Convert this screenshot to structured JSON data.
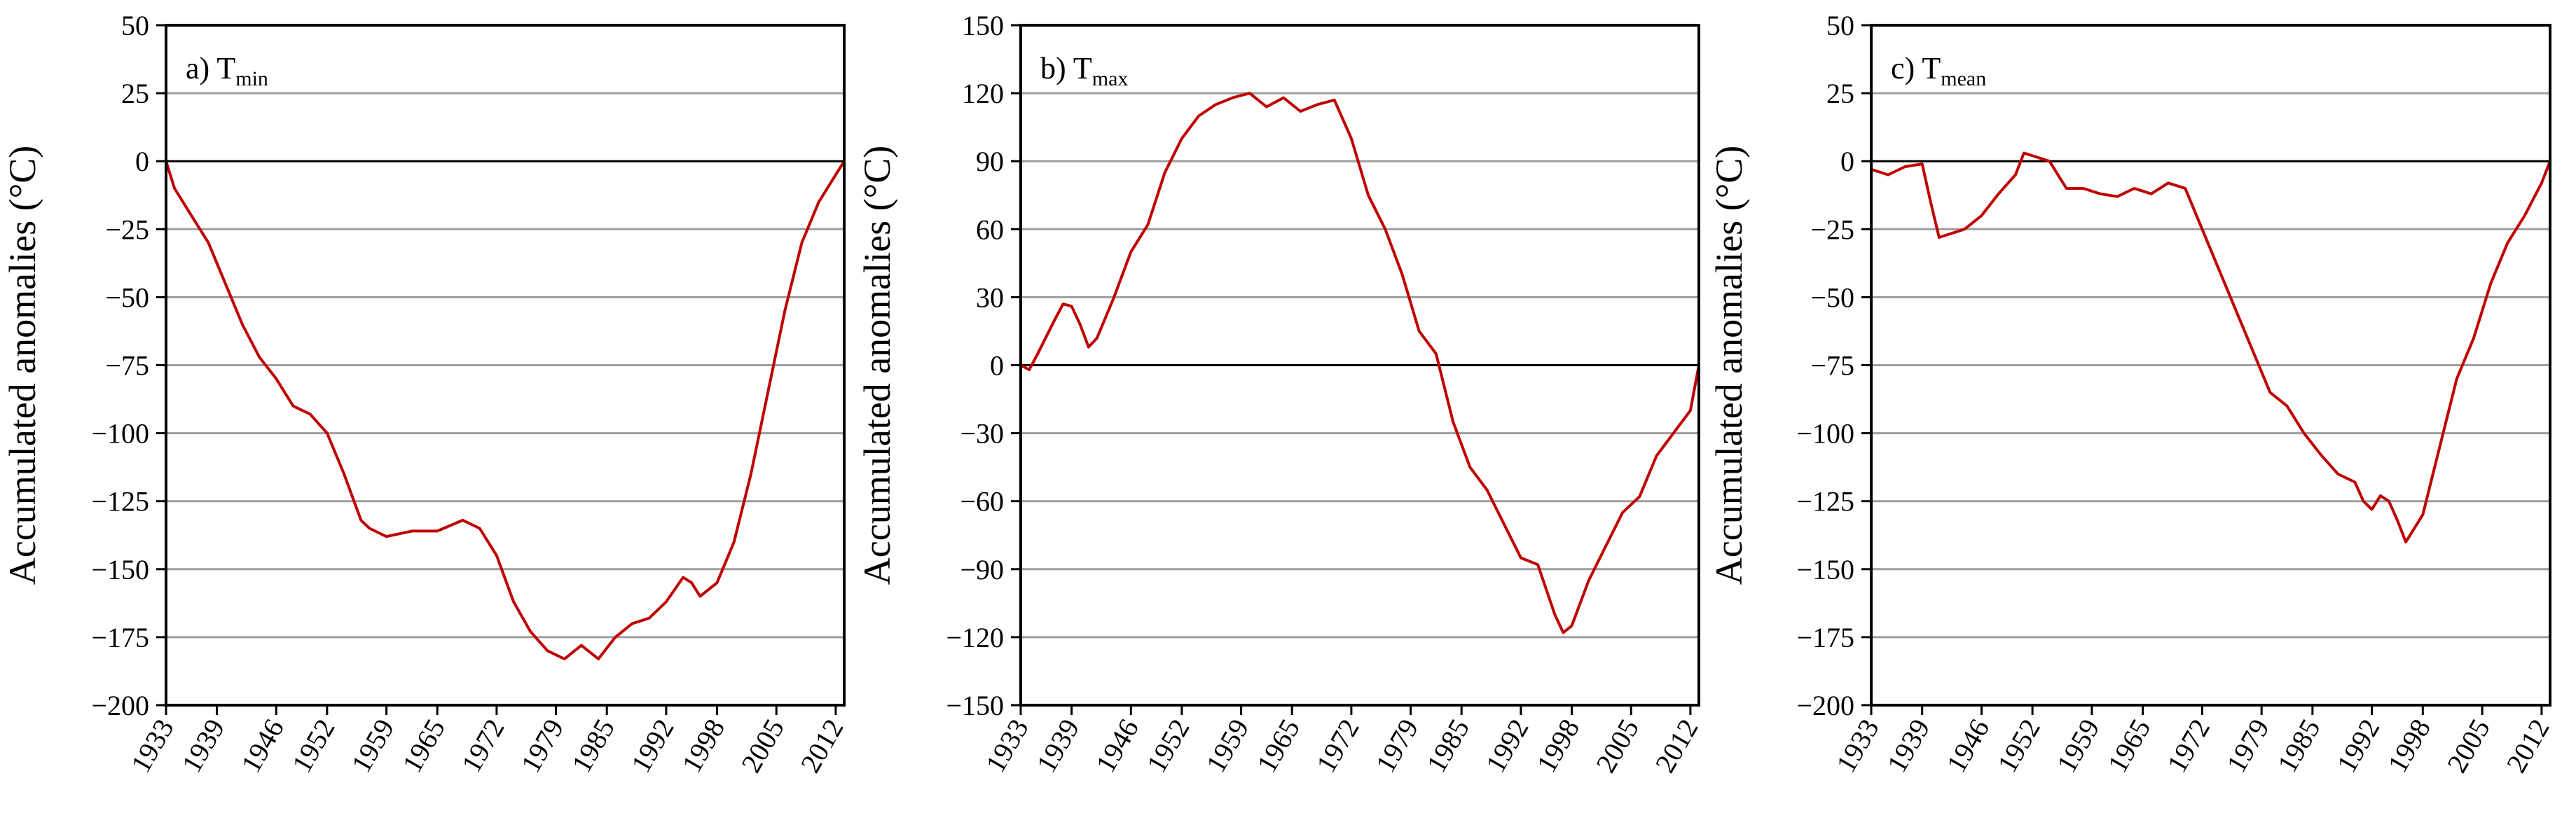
{
  "chart_data": [
    {
      "type": "line",
      "panel_label": "a) T",
      "panel_sub": "min",
      "ylabel": "Accumulated anomalies (°C)",
      "ylim": [
        -200,
        50
      ],
      "yticks": [
        50,
        25,
        0,
        -25,
        -50,
        -75,
        -100,
        -125,
        -150,
        -175,
        -200
      ],
      "xlim": [
        1933,
        2013
      ],
      "xticks": [
        "1933",
        "1939",
        "1946",
        "1952",
        "1959",
        "1965",
        "1972",
        "1979",
        "1985",
        "1992",
        "1998",
        "2005",
        "2012"
      ],
      "grid": true,
      "series_color": "#c00000",
      "series": [
        {
          "x": [
            1933,
            1934,
            1936,
            1938,
            1940,
            1942,
            1944,
            1946,
            1948,
            1950,
            1952,
            1954,
            1956,
            1957,
            1959,
            1962,
            1965,
            1968,
            1970,
            1972,
            1974,
            1976,
            1978,
            1980,
            1982,
            1984,
            1986,
            1988,
            1990,
            1992,
            1994,
            1995,
            1996,
            1998,
            2000,
            2002,
            2004,
            2006,
            2008,
            2010,
            2012,
            2013
          ],
          "y": [
            0,
            -10,
            -20,
            -30,
            -45,
            -60,
            -72,
            -80,
            -90,
            -93,
            -100,
            -115,
            -132,
            -135,
            -138,
            -136,
            -136,
            -132,
            -135,
            -145,
            -162,
            -173,
            -180,
            -183,
            -178,
            -183,
            -175,
            -170,
            -168,
            -162,
            -153,
            -155,
            -160,
            -155,
            -140,
            -115,
            -85,
            -55,
            -30,
            -15,
            -5,
            0
          ]
        }
      ]
    },
    {
      "type": "line",
      "panel_label": "b) T",
      "panel_sub": "max",
      "ylabel": "Accumulated anomalies (°C)",
      "ylim": [
        -150,
        150
      ],
      "yticks": [
        150,
        120,
        90,
        60,
        30,
        0,
        -30,
        -60,
        -90,
        -120,
        -150
      ],
      "xlim": [
        1933,
        2013
      ],
      "xticks": [
        "1933",
        "1939",
        "1946",
        "1952",
        "1959",
        "1965",
        "1972",
        "1979",
        "1985",
        "1992",
        "1998",
        "2005",
        "2012"
      ],
      "grid": true,
      "series_color": "#c00000",
      "series": [
        {
          "x": [
            1933,
            1934,
            1935,
            1937,
            1938,
            1939,
            1940,
            1941,
            1942,
            1944,
            1946,
            1948,
            1950,
            1952,
            1954,
            1956,
            1958,
            1960,
            1962,
            1964,
            1966,
            1968,
            1970,
            1972,
            1974,
            1976,
            1978,
            1980,
            1982,
            1984,
            1986,
            1988,
            1990,
            1992,
            1994,
            1996,
            1997,
            1998,
            2000,
            2002,
            2004,
            2006,
            2008,
            2010,
            2012,
            2013
          ],
          "y": [
            0,
            -2,
            5,
            20,
            27,
            26,
            18,
            8,
            12,
            30,
            50,
            62,
            85,
            100,
            110,
            115,
            118,
            120,
            114,
            118,
            112,
            115,
            117,
            100,
            75,
            60,
            40,
            15,
            5,
            -25,
            -45,
            -55,
            -70,
            -85,
            -88,
            -110,
            -118,
            -115,
            -95,
            -80,
            -65,
            -58,
            -40,
            -30,
            -20,
            0
          ]
        }
      ]
    },
    {
      "type": "line",
      "panel_label": "c) T",
      "panel_sub": "mean",
      "ylabel": "Accumulated anomalies (°C)",
      "ylim": [
        -200,
        50
      ],
      "yticks": [
        50,
        25,
        0,
        -25,
        -50,
        -75,
        -100,
        -125,
        -150,
        -175,
        -200
      ],
      "xlim": [
        1933,
        2013
      ],
      "xticks": [
        "1933",
        "1939",
        "1946",
        "1952",
        "1959",
        "1965",
        "1972",
        "1979",
        "1985",
        "1992",
        "1998",
        "2005",
        "2012"
      ],
      "grid": true,
      "series_color": "#c00000",
      "series": [
        {
          "x": [
            1933,
            1935,
            1937,
            1939,
            1940,
            1941,
            1942,
            1944,
            1946,
            1948,
            1950,
            1951,
            1952,
            1954,
            1955,
            1956,
            1958,
            1960,
            1962,
            1964,
            1966,
            1968,
            1970,
            1972,
            1974,
            1976,
            1978,
            1980,
            1982,
            1984,
            1986,
            1988,
            1990,
            1991,
            1992,
            1993,
            1994,
            1995,
            1996,
            1998,
            2000,
            2002,
            2004,
            2006,
            2008,
            2010,
            2012,
            2013
          ],
          "y": [
            -3,
            -5,
            -2,
            -1,
            -15,
            -28,
            -27,
            -25,
            -20,
            -12,
            -5,
            3,
            2,
            0,
            -5,
            -10,
            -10,
            -12,
            -13,
            -10,
            -12,
            -8,
            -10,
            -25,
            -40,
            -55,
            -70,
            -85,
            -90,
            -100,
            -108,
            -115,
            -118,
            -125,
            -128,
            -123,
            -125,
            -132,
            -140,
            -130,
            -105,
            -80,
            -65,
            -45,
            -30,
            -20,
            -8,
            0
          ]
        }
      ]
    }
  ]
}
